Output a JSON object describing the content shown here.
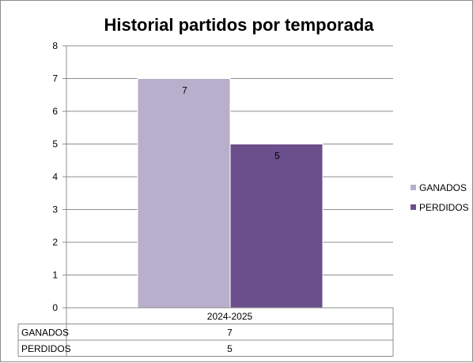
{
  "chart_data": {
    "type": "bar",
    "title": "Historial partidos por temporada",
    "categories": [
      "2024-2025"
    ],
    "series": [
      {
        "name": "GANADOS",
        "values": [
          7
        ],
        "color": "#b8afcc"
      },
      {
        "name": "PERDIDOS",
        "values": [
          5
        ],
        "color": "#6a4f8c"
      }
    ],
    "ylim": [
      0,
      8
    ],
    "yticks": [
      "0",
      "1",
      "2",
      "3",
      "4",
      "5",
      "6",
      "7",
      "8"
    ],
    "grid": true,
    "legend": "right",
    "data_table": {
      "header": "2024-2025",
      "rows": [
        {
          "label": "GANADOS",
          "value": "7"
        },
        {
          "label": "PERDIDOS",
          "value": "5"
        }
      ]
    }
  }
}
